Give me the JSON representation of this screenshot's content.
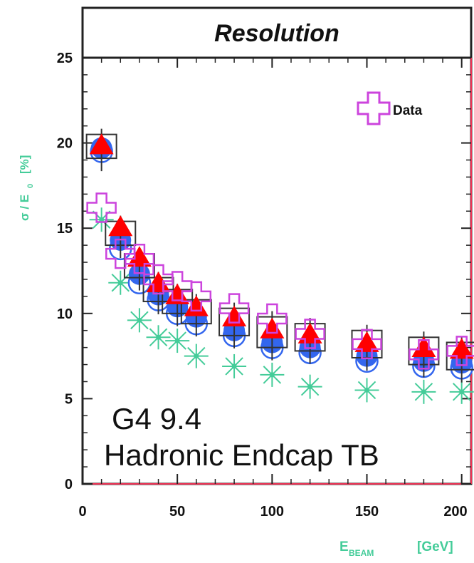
{
  "chart_data": {
    "type": "scatter",
    "title": "Resolution",
    "xlabel_main": "E",
    "xlabel_sub": "BEAM",
    "xlabel_unit": "[GeV]",
    "ylabel_main": "σ / E",
    "ylabel_sub": "0",
    "ylabel_unit": "[%]",
    "xlim": [
      0,
      205
    ],
    "ylim": [
      0,
      25
    ],
    "xticks": [
      "0",
      "50",
      "100",
      "150",
      "200"
    ],
    "yticks": [
      "0",
      "5",
      "10",
      "15",
      "20",
      "25"
    ],
    "annotation_line1": "G4 9.4",
    "annotation_line2": "Hadronic Endcap TB",
    "legend": {
      "label": "Data",
      "placement": "top-right"
    },
    "colors": {
      "data": "#cc44dd",
      "green_star": "#44cc99",
      "blue_circle": "#3366ee",
      "red_triangle": "#ff0000",
      "box": "#333333",
      "ylabel": "#44cc99",
      "xlabel": "#44cc99"
    },
    "series": [
      {
        "marker": "cross-open",
        "x": [
          10,
          20,
          30,
          40,
          50,
          60,
          80,
          100,
          120,
          150,
          180,
          200
        ],
        "y": [
          16.2,
          13.5,
          13.2,
          12.0,
          11.6,
          11.0,
          10.3,
          9.7,
          8.8,
          8.2,
          7.6,
          7.8
        ]
      },
      {
        "marker": "star",
        "x": [
          10,
          20,
          30,
          40,
          50,
          60,
          80,
          100,
          120,
          150,
          180,
          200
        ],
        "y": [
          15.5,
          11.8,
          9.6,
          8.6,
          8.4,
          7.5,
          6.9,
          6.4,
          5.7,
          5.5,
          5.4,
          5.4
        ]
      },
      {
        "marker": "circle-open",
        "x": [
          10,
          20,
          30,
          40,
          50,
          60,
          80,
          100,
          120,
          150,
          180,
          200
        ],
        "y": [
          19.5,
          13.8,
          11.8,
          10.8,
          10.0,
          9.4,
          8.7,
          8.0,
          7.7,
          7.2,
          6.9,
          6.8
        ]
      },
      {
        "marker": "circle-filled",
        "x": [
          10,
          20,
          30,
          40,
          50,
          60,
          80,
          100,
          120,
          150,
          180,
          200
        ],
        "y": [
          19.7,
          14.3,
          12.3,
          11.1,
          10.4,
          9.8,
          9.0,
          8.3,
          8.0,
          7.5,
          7.2,
          7.1
        ]
      },
      {
        "marker": "box",
        "x": [
          10,
          20,
          30,
          40,
          50,
          60,
          80,
          100,
          120,
          150,
          180,
          200
        ],
        "y": [
          19.8,
          14.7,
          12.8,
          11.4,
          10.7,
          10.1,
          9.5,
          8.9,
          8.6,
          8.2,
          7.8,
          7.5
        ],
        "err": [
          0.7,
          0.7,
          0.7,
          0.7,
          0.7,
          0.7,
          0.8,
          0.9,
          0.8,
          0.8,
          0.8,
          0.8
        ]
      },
      {
        "marker": "triangle-filled",
        "x": [
          10,
          20,
          30,
          40,
          50,
          60,
          80,
          100,
          120,
          150,
          180,
          200
        ],
        "y": [
          19.8,
          15.0,
          13.2,
          11.7,
          11.0,
          10.3,
          9.7,
          9.0,
          8.7,
          8.2,
          7.9,
          7.8
        ]
      }
    ]
  }
}
